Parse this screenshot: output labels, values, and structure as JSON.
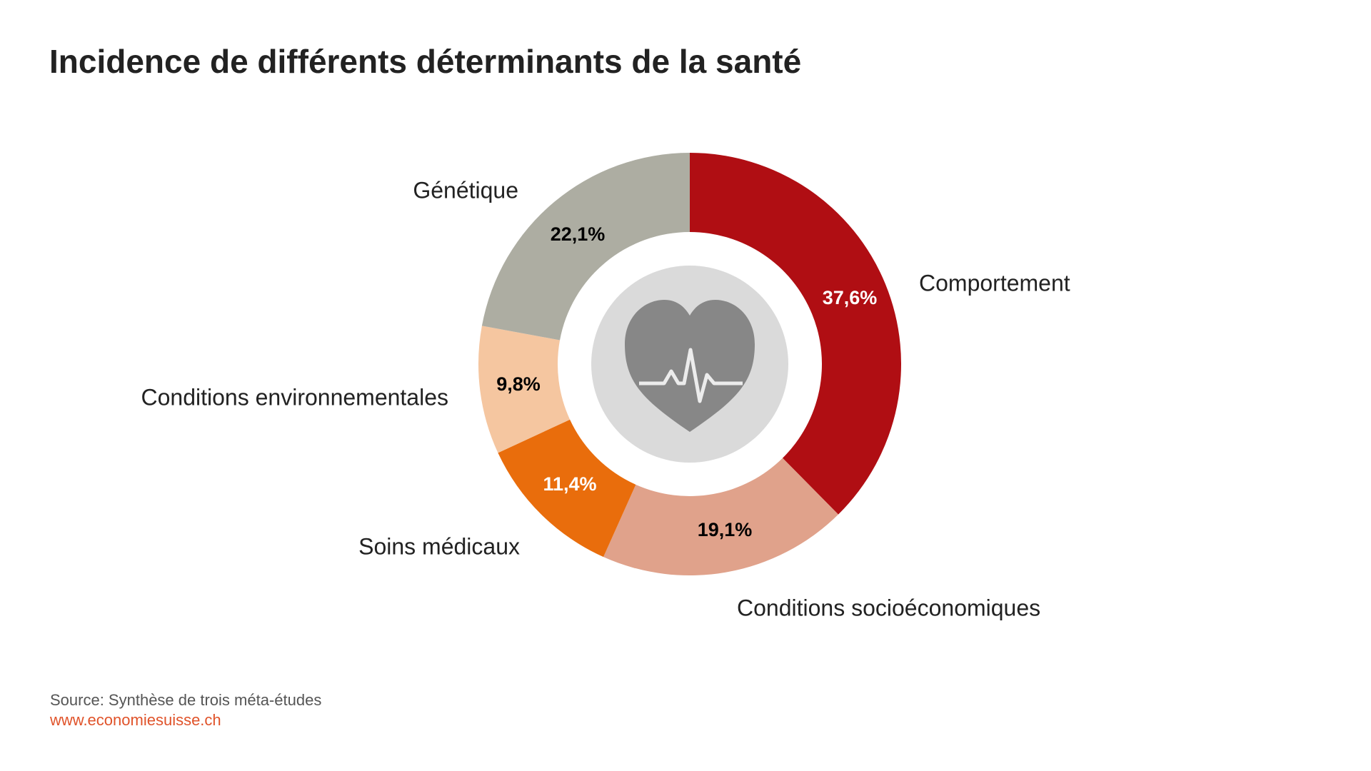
{
  "chart_data": {
    "type": "donut",
    "title": "Incidence de différents déterminants de la santé",
    "categories": [
      "Comportement",
      "Conditions socioéconomiques",
      "Soins médicaux",
      "Conditions environnementales",
      "Génétique"
    ],
    "values": [
      37.6,
      19.1,
      11.4,
      9.8,
      22.1
    ],
    "value_labels": [
      "37,6%",
      "19,1%",
      "11,4%",
      "9,8%",
      "22,1%"
    ],
    "colors": [
      "#b00e13",
      "#e0a28b",
      "#e96d0c",
      "#f5c6a0",
      "#adada2"
    ],
    "value_label_colors": [
      "#ffffff",
      "#000000",
      "#ffffff",
      "#000000",
      "#000000"
    ],
    "source": "Source: Synthèse de trois méta-études",
    "url": "www.economiesuisse.ch"
  }
}
